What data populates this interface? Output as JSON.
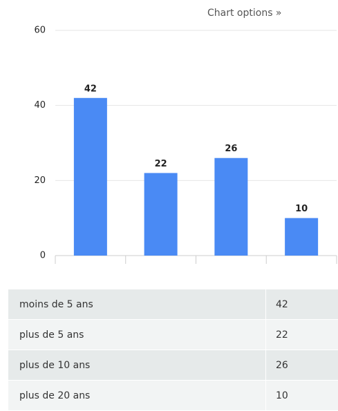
{
  "options_link": "Chart options »",
  "chart_data": {
    "type": "bar",
    "values": [
      42,
      22,
      26,
      10
    ],
    "color": "#4a8af4",
    "ylim": [
      0,
      60
    ],
    "yticks": [
      0,
      20,
      40,
      60
    ],
    "grid": true
  },
  "table": {
    "rows": [
      [
        "moins de 5 ans",
        42
      ],
      [
        "plus de 5 ans",
        22
      ],
      [
        "plus de 10 ans",
        26
      ],
      [
        "plus de 20 ans",
        10
      ]
    ]
  }
}
